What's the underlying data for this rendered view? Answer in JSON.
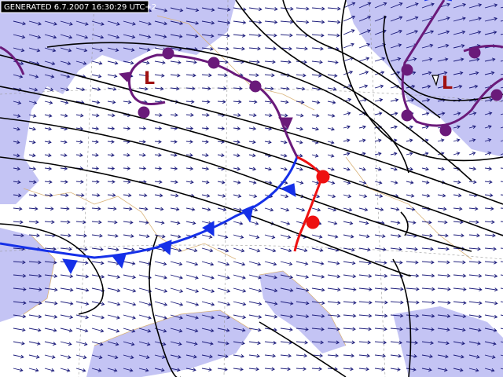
{
  "header": {
    "timestamp": "GENERATED 6.7.2007 16:30:29 UTC+2"
  },
  "pressure_centers": [
    {
      "label": "L"
    },
    {
      "label": "L"
    }
  ]
}
